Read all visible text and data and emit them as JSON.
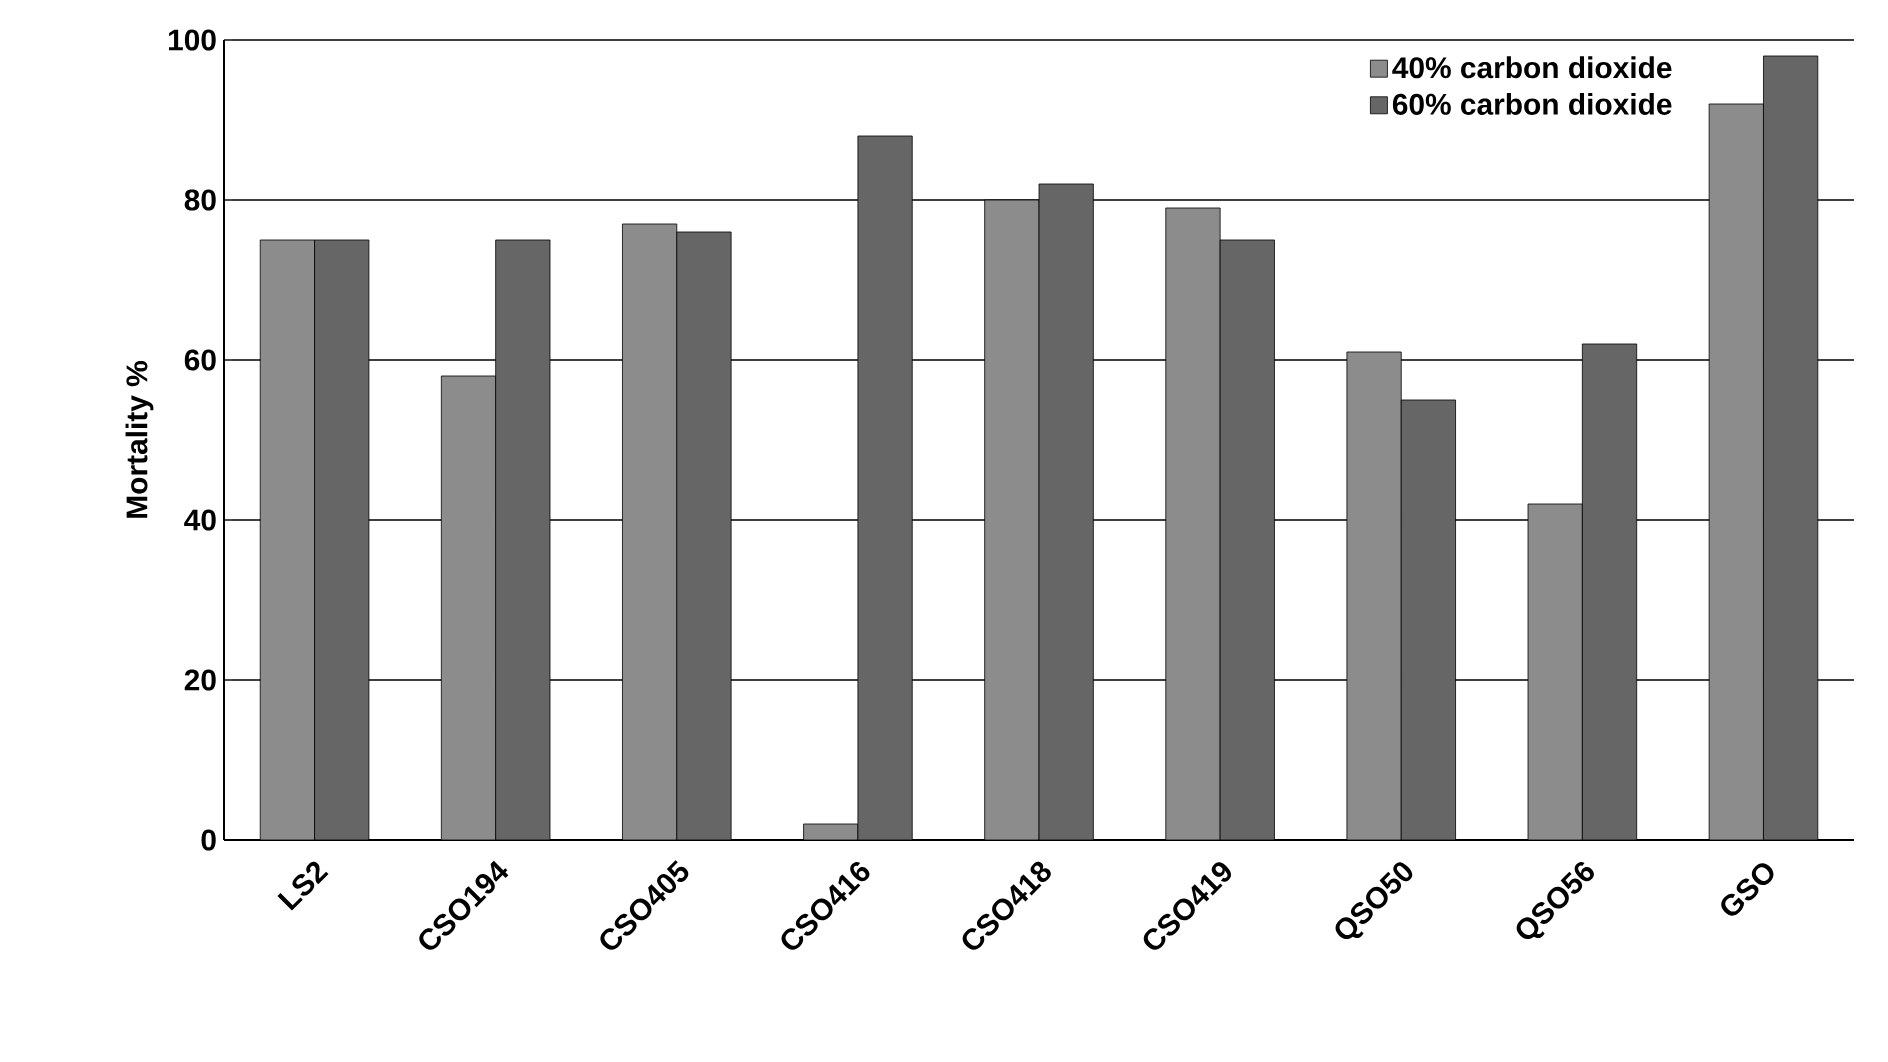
{
  "chart_data": {
    "type": "bar",
    "ylabel": "Mortality %",
    "categories": [
      "LS2",
      "CSO194",
      "CSO405",
      "CSO416",
      "CSO418",
      "CSO419",
      "QSO50",
      "QSO56",
      "GSO"
    ],
    "series": [
      {
        "name": "40% carbon dioxide",
        "color": "#8c8c8c",
        "values": [
          75,
          58,
          77,
          2,
          80,
          79,
          61,
          42,
          92
        ]
      },
      {
        "name": "60% carbon dioxide",
        "color": "#666666",
        "values": [
          75,
          75,
          76,
          88,
          82,
          75,
          55,
          62,
          98
        ]
      }
    ],
    "ylim": [
      0,
      100
    ],
    "yticks": [
      0,
      20,
      40,
      60,
      80,
      100
    ],
    "grid": "y",
    "legend": "top right"
  }
}
